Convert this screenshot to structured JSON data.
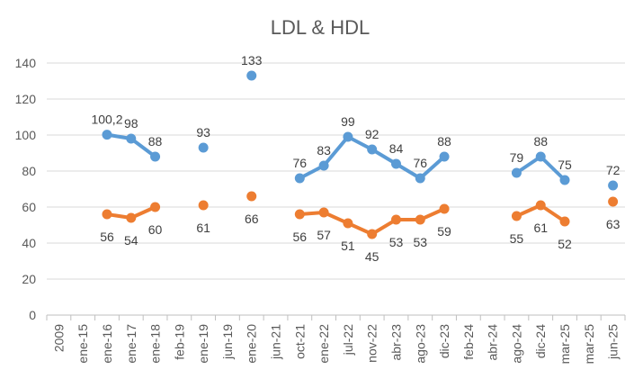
{
  "chart_data": {
    "type": "line",
    "title": "LDL & HDL",
    "xlabel": "",
    "ylabel": "",
    "ylim": [
      0,
      140
    ],
    "yticks": [
      "0",
      "20",
      "40",
      "60",
      "80",
      "100",
      "120",
      "140"
    ],
    "grid": true,
    "legend": "none",
    "categories": [
      "2009",
      "ene-15",
      "ene-16",
      "ene-17",
      "ene-18",
      "feb-19",
      "ene-19",
      "jun-19",
      "ene-20",
      "jun-21",
      "oct-21",
      "ene-22",
      "jul-22",
      "nov-22",
      "abr-23",
      "ago-23",
      "dic-23",
      "feb-24",
      "abr-24",
      "ago-24",
      "dic-24",
      "mar-25",
      "mar-25",
      "jun-25"
    ],
    "series": [
      {
        "color": "#5b9bd5",
        "values": [
          null,
          null,
          100.2,
          98,
          88,
          null,
          93,
          null,
          133,
          null,
          76,
          83,
          99,
          92,
          84,
          76,
          88,
          null,
          null,
          79,
          88,
          75,
          null,
          72
        ],
        "labels": [
          null,
          null,
          "100,2",
          "98",
          "88",
          null,
          "93",
          null,
          "133",
          null,
          "76",
          "83",
          "99",
          "92",
          "84",
          "76",
          "88",
          null,
          null,
          "79",
          "88",
          "75",
          null,
          "72"
        ]
      },
      {
        "color": "#ed7d31",
        "values": [
          null,
          null,
          56,
          54,
          60,
          null,
          61,
          null,
          66,
          null,
          56,
          57,
          51,
          45,
          53,
          53,
          59,
          null,
          null,
          55,
          61,
          52,
          null,
          63
        ],
        "labels": [
          null,
          null,
          "56",
          "54",
          "60",
          null,
          "61",
          null,
          "66",
          null,
          "56",
          "57",
          "51",
          "45",
          "53",
          "53",
          "59",
          null,
          null,
          "55",
          "61",
          "52",
          null,
          "63"
        ]
      }
    ]
  }
}
